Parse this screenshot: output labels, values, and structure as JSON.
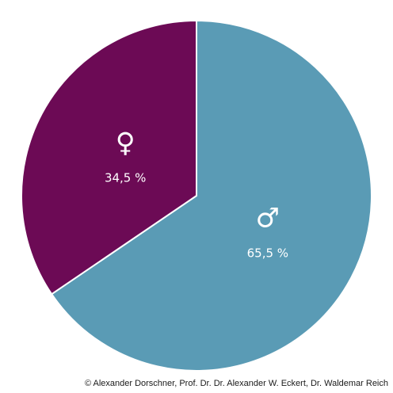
{
  "chart_data": {
    "type": "pie",
    "slices": [
      {
        "label": "65,5 %",
        "symbol": "♂",
        "value": 65.5,
        "color": "#5a9bb5"
      },
      {
        "label": "34,5 %",
        "symbol": "♀",
        "value": 34.5,
        "color": "#6c0a55"
      }
    ],
    "start_angle": "12 o'clock, clockwise"
  },
  "footer": {
    "copyright": "© Alexander Dorschner, Prof. Dr. Dr. Alexander W. Eckert, Dr. Waldemar Reich"
  }
}
